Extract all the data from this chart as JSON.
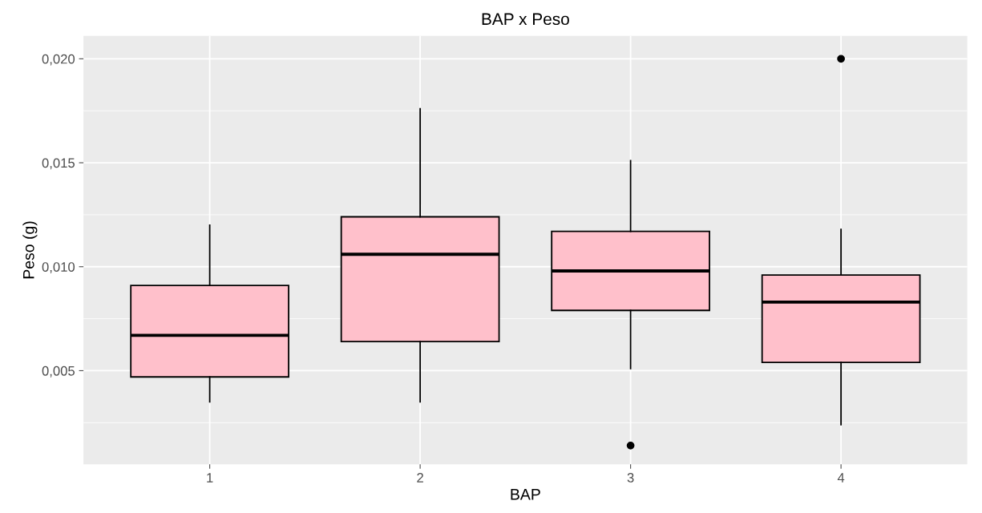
{
  "chart_data": {
    "type": "box",
    "title": "BAP x Peso",
    "xlabel": "BAP",
    "ylabel": "Peso (g)",
    "categories": [
      "1",
      "2",
      "3",
      "4"
    ],
    "series": [
      {
        "color": "#ffc0cb",
        "boxes": [
          {
            "low": 0.0035,
            "q1": 0.0047,
            "median": 0.0067,
            "q3": 0.0091,
            "high": 0.012
          },
          {
            "low": 0.0035,
            "q1": 0.0064,
            "median": 0.0106,
            "q3": 0.0124,
            "high": 0.0176
          },
          {
            "low": 0.0051,
            "q1": 0.0079,
            "median": 0.0098,
            "q3": 0.0117,
            "high": 0.0151,
            "outliers": [
              0.0014
            ]
          },
          {
            "low": 0.0024,
            "q1": 0.0054,
            "median": 0.0083,
            "q3": 0.0096,
            "high": 0.0118,
            "outliers": [
              0.02
            ]
          }
        ]
      }
    ],
    "ylim": [
      0.0005,
      0.0211
    ],
    "yticks": [
      {
        "value": 0.005,
        "label": "0,005"
      },
      {
        "value": 0.01,
        "label": "0,010"
      },
      {
        "value": 0.015,
        "label": "0,015"
      },
      {
        "value": 0.02,
        "label": "0,020"
      }
    ],
    "grid": true,
    "legend": false
  }
}
